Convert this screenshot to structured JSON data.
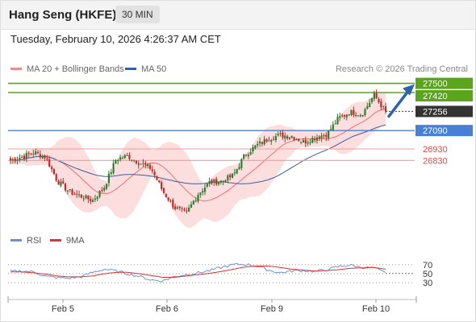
{
  "header": {
    "title": "Hang Seng (HKFE)",
    "timeframe": "30 MIN",
    "datetime": "Tuesday, February 10, 2026 4:26:37 AM CET"
  },
  "legend": {
    "bollinger_label": "MA 20 + Bollinger Bands",
    "ma50_label": "MA 50",
    "credit": "Research © 2026 Trading Central"
  },
  "rsi_legend": {
    "rsi_label": "RSI",
    "ma_label": "9MA"
  },
  "colors": {
    "up": "#2e7d32",
    "down": "#c62828",
    "ma20": "#ef6f6f",
    "band_fill": "#fbd3d3",
    "ma50": "#3a5d9c",
    "target_line": "#5aa51b",
    "pivot_line": "#4a7fd6",
    "support_line": "#f29c9c",
    "last_price_tag": "#333333",
    "arrow": "#2d63ad",
    "rsi": "#6f8fd3",
    "rsi_ma": "#e03030"
  },
  "chart_data": {
    "type": "candlestick",
    "x_labels": [
      "Feb 5",
      "Feb 6",
      "Feb 9",
      "Feb 10"
    ],
    "price_levels": [
      {
        "label": "27500",
        "value": 27500,
        "role": "resistance"
      },
      {
        "label": "27420",
        "value": 27420,
        "role": "resistance"
      },
      {
        "label": "27256",
        "value": 27256,
        "role": "last price"
      },
      {
        "label": "27090",
        "value": 27090,
        "role": "pivot"
      },
      {
        "label": "26930",
        "value": 26930,
        "role": "support"
      },
      {
        "label": "26830",
        "value": 26830,
        "role": "support"
      }
    ],
    "trend": "up",
    "close_path": [
      26830,
      26860,
      26900,
      26860,
      26650,
      26560,
      26520,
      26480,
      26600,
      26840,
      26870,
      26810,
      26760,
      26560,
      26420,
      26370,
      26540,
      26640,
      26650,
      26700,
      26880,
      26960,
      27020,
      27050,
      27040,
      26990,
      27030,
      27060,
      27200,
      27250,
      27230,
      27400,
      27256
    ],
    "rsi": {
      "levels": [
        70,
        50,
        30
      ],
      "values": [
        55,
        56,
        54,
        44,
        41,
        40,
        43,
        53,
        60,
        56,
        50,
        44,
        36,
        34,
        44,
        48,
        52,
        57,
        64,
        70,
        71,
        67,
        58,
        52,
        56,
        57,
        55,
        59,
        66,
        69,
        64,
        63,
        51
      ],
      "ma_values": [
        54,
        54,
        52,
        49,
        45,
        43,
        43,
        45,
        50,
        53,
        53,
        50,
        46,
        42,
        42,
        45,
        48,
        51,
        55,
        60,
        65,
        67,
        67,
        64,
        60,
        58,
        56,
        57,
        59,
        62,
        63,
        64,
        60
      ]
    }
  }
}
